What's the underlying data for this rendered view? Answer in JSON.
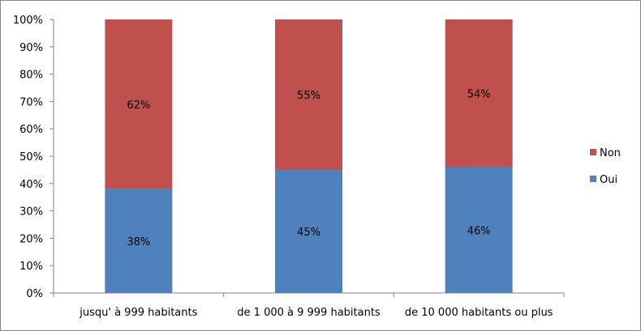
{
  "chart_data": {
    "type": "bar",
    "stacked": true,
    "percent": true,
    "categories": [
      "jusqu' à 999 habitants",
      "de 1 000 à 9 999 habitants",
      "de 10 000 habitants ou plus"
    ],
    "series": [
      {
        "name": "Oui",
        "values": [
          38,
          45,
          46
        ],
        "labels": [
          "38%",
          "45%",
          "46%"
        ],
        "color": "#4F81BD"
      },
      {
        "name": "Non",
        "values": [
          62,
          55,
          54
        ],
        "labels": [
          "62%",
          "55%",
          "54%"
        ],
        "color": "#C0504D"
      }
    ],
    "ylim": [
      0,
      100
    ],
    "yticks": [
      "0%",
      "10%",
      "20%",
      "30%",
      "40%",
      "50%",
      "60%",
      "70%",
      "80%",
      "90%",
      "100%"
    ],
    "grid": false,
    "legend": "right"
  }
}
